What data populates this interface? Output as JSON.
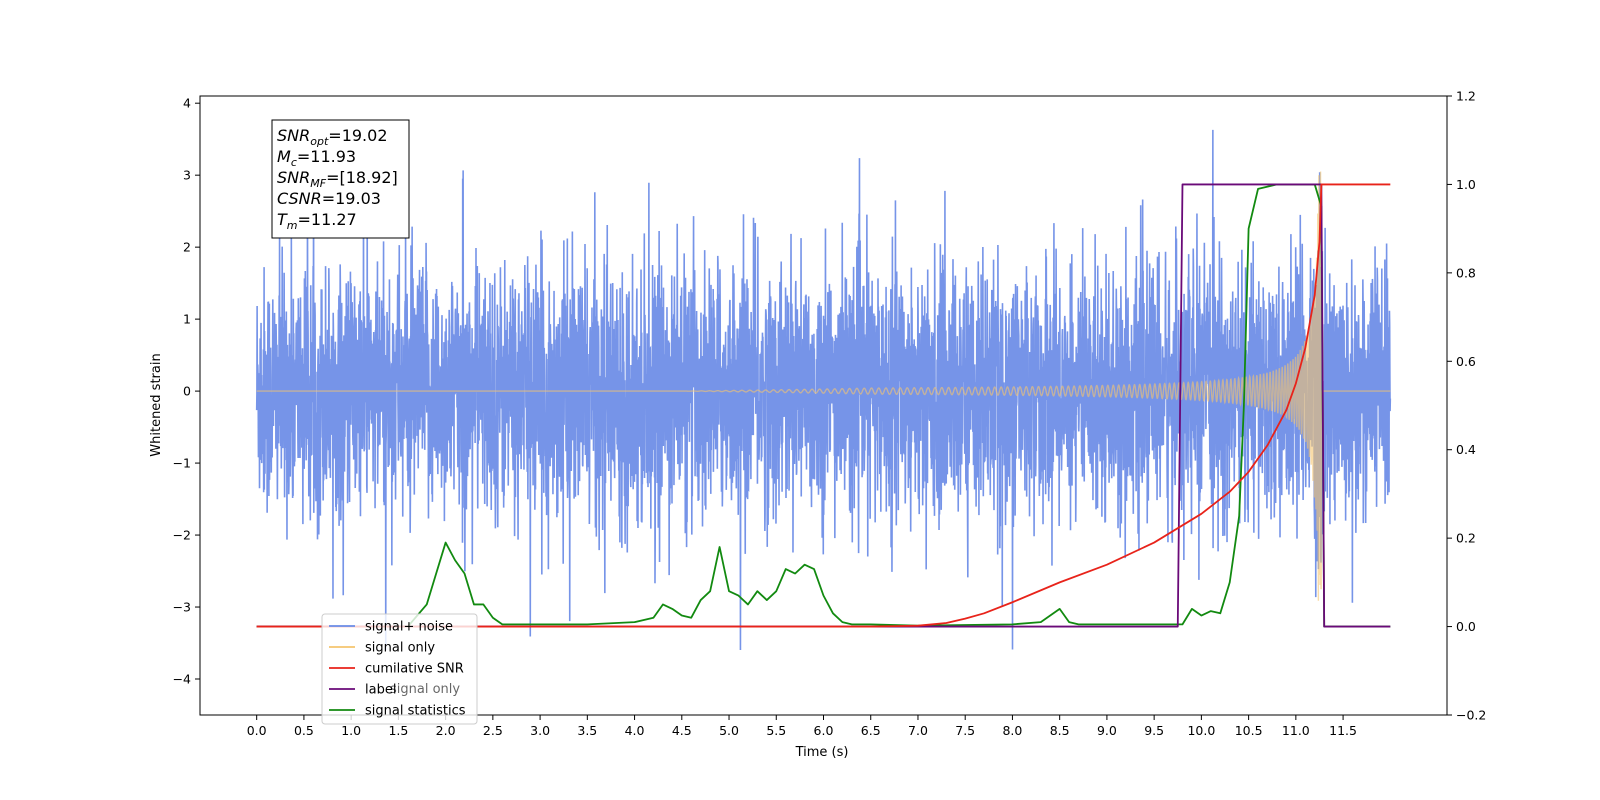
{
  "chart_data": {
    "type": "line",
    "xlabel": "Time (s)",
    "ylabel_left": "Whitened strain",
    "ylabel_right": "",
    "xlim": [
      -0.6,
      12.6
    ],
    "ylim_left": [
      -4.5,
      4.1
    ],
    "ylim_right": [
      -0.2,
      1.2
    ],
    "x_ticks": [
      "0.0",
      "0.5",
      "1.0",
      "1.5",
      "2.0",
      "2.5",
      "3.0",
      "3.5",
      "4.0",
      "4.5",
      "5.0",
      "5.5",
      "6.0",
      "6.5",
      "7.0",
      "7.5",
      "8.0",
      "8.5",
      "9.0",
      "9.5",
      "10.0",
      "10.5",
      "11.0",
      "11.5"
    ],
    "x_tick_values": [
      0.0,
      0.5,
      1.0,
      1.5,
      2.0,
      2.5,
      3.0,
      3.5,
      4.0,
      4.5,
      5.0,
      5.5,
      6.0,
      6.5,
      7.0,
      7.5,
      8.0,
      8.5,
      9.0,
      9.5,
      10.0,
      10.5,
      11.0,
      11.5
    ],
    "y_ticks_left": [
      "−4",
      "−3",
      "−2",
      "−1",
      "0",
      "1",
      "2",
      "3",
      "4"
    ],
    "y_tick_values_left": [
      -4,
      -3,
      -2,
      -1,
      0,
      1,
      2,
      3,
      4
    ],
    "y_ticks_right": [
      "−0.2",
      "0.0",
      "0.2",
      "0.4",
      "0.6",
      "0.8",
      "1.0",
      "1.2"
    ],
    "y_tick_values_right": [
      -0.2,
      0.0,
      0.2,
      0.4,
      0.6,
      0.8,
      1.0,
      1.2
    ],
    "grid": false,
    "legend_position": "lower-left",
    "series": [
      {
        "name": "signal+ noise",
        "color": "#6a8be6",
        "axis": "left",
        "kind": "noise",
        "x_range": [
          0.0,
          12.0
        ],
        "amplitude_std": 0.85,
        "peak_max": 3.7,
        "peak_min": -3.6
      },
      {
        "name": "signal only",
        "color": "#f5c46e",
        "axis": "left",
        "kind": "chirp",
        "x_range": [
          0.0,
          12.0
        ],
        "merger_time": 11.27,
        "peak_amplitude": 3.1
      },
      {
        "name": "cumilative SNR",
        "color": "#e8231a",
        "axis": "right",
        "x": [
          0.0,
          6.5,
          7.0,
          7.3,
          7.5,
          7.7,
          8.0,
          8.5,
          9.0,
          9.5,
          10.0,
          10.3,
          10.5,
          10.7,
          10.9,
          11.0,
          11.1,
          11.2,
          11.25,
          11.27,
          11.3,
          12.0
        ],
        "y": [
          0.0,
          0.0,
          0.002,
          0.008,
          0.018,
          0.03,
          0.055,
          0.1,
          0.14,
          0.19,
          0.255,
          0.305,
          0.35,
          0.41,
          0.49,
          0.55,
          0.63,
          0.75,
          0.87,
          1.0,
          1.0,
          1.0
        ]
      },
      {
        "name": "label",
        "color": "#6a0a78",
        "axis": "right",
        "x": [
          0.0,
          9.75,
          9.8,
          11.27,
          11.3,
          12.0
        ],
        "y": [
          0.0,
          0.0,
          1.0,
          1.0,
          0.0,
          0.0
        ]
      },
      {
        "name": "signal statistics",
        "color": "#128a10",
        "axis": "right",
        "x": [
          0.0,
          1.6,
          1.8,
          1.9,
          2.0,
          2.1,
          2.2,
          2.3,
          2.4,
          2.5,
          2.6,
          2.7,
          3.0,
          3.5,
          4.0,
          4.2,
          4.3,
          4.4,
          4.5,
          4.6,
          4.7,
          4.8,
          4.9,
          5.0,
          5.1,
          5.2,
          5.3,
          5.4,
          5.5,
          5.6,
          5.7,
          5.8,
          5.9,
          6.0,
          6.1,
          6.2,
          6.3,
          6.5,
          7.0,
          8.0,
          8.3,
          8.5,
          8.6,
          8.7,
          9.0,
          9.5,
          9.8,
          9.9,
          10.0,
          10.1,
          10.2,
          10.3,
          10.4,
          10.45,
          10.5,
          10.6,
          10.8,
          11.0,
          11.2,
          11.27,
          11.3,
          12.0
        ],
        "y": [
          0.0,
          0.0,
          0.05,
          0.12,
          0.19,
          0.15,
          0.12,
          0.05,
          0.05,
          0.02,
          0.005,
          0.005,
          0.005,
          0.005,
          0.01,
          0.02,
          0.05,
          0.04,
          0.025,
          0.02,
          0.06,
          0.08,
          0.18,
          0.08,
          0.07,
          0.05,
          0.08,
          0.06,
          0.08,
          0.13,
          0.12,
          0.14,
          0.13,
          0.07,
          0.03,
          0.01,
          0.005,
          0.005,
          0.002,
          0.005,
          0.01,
          0.04,
          0.01,
          0.005,
          0.005,
          0.005,
          0.005,
          0.04,
          0.025,
          0.035,
          0.03,
          0.1,
          0.25,
          0.5,
          0.9,
          0.99,
          1.0,
          1.0,
          1.0,
          0.95,
          0.0,
          0.0
        ]
      }
    ],
    "annotation": {
      "lines": [
        {
          "main": "SNR",
          "sub": "opt",
          "rest": "=19.02"
        },
        {
          "main": "M",
          "sub": "c",
          "rest": "=11.93"
        },
        {
          "main": "SNR",
          "sub": "MF",
          "rest": "=[18.92]"
        },
        {
          "main": "CSNR",
          "sub": "",
          "rest": "=19.03"
        },
        {
          "main": "T",
          "sub": "m",
          "rest": "=11.27"
        }
      ]
    },
    "legend_overlap_text": "signal only"
  }
}
